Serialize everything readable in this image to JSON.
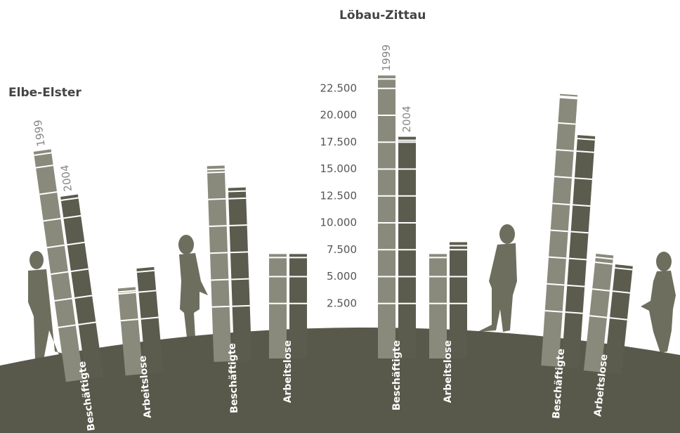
{
  "chart_data": {
    "type": "bar",
    "ylim": [
      0,
      25000
    ],
    "yticks": [
      {
        "value": 2500,
        "label": "2.500"
      },
      {
        "value": 5000,
        "label": "5.000"
      },
      {
        "value": 7500,
        "label": "7.500"
      },
      {
        "value": 10000,
        "label": "10.000"
      },
      {
        "value": 12500,
        "label": "12.500"
      },
      {
        "value": 15000,
        "label": "15.000"
      },
      {
        "value": 17500,
        "label": "17.500"
      },
      {
        "value": 20000,
        "label": "20.000"
      },
      {
        "value": 22500,
        "label": "22.500"
      }
    ],
    "groups": [
      {
        "name": "Elbe-Elster",
        "categories": [
          "Beschäftigte",
          "Arbeitslose"
        ],
        "series": [
          {
            "name": "1999",
            "color": "#8a8a7c",
            "values": [
              19000,
              5500
            ]
          },
          {
            "name": "2004",
            "color": "#5c5c4e",
            "values": [
              14500,
              7200
            ]
          }
        ]
      },
      {
        "categories": [
          "Beschäftigte",
          "Arbeitslose"
        ],
        "series": [
          {
            "color": "#8a8a7c",
            "values": [
              15600,
              7100
            ]
          },
          {
            "color": "#5c5c4e",
            "values": [
              13500,
              7100
            ]
          }
        ]
      },
      {
        "name": "Löbau-Zittau",
        "categories": [
          "Beschäftigte",
          "Arbeitslose"
        ],
        "series": [
          {
            "name": "1999",
            "color": "#8a8a7c",
            "values": [
              23700,
              7100
            ]
          },
          {
            "name": "2004",
            "color": "#5c5c4e",
            "values": [
              18000,
              8200
            ]
          }
        ]
      },
      {
        "categories": [
          "Beschäftigte",
          "Arbeitslose"
        ],
        "series": [
          {
            "color": "#8a8a7c",
            "values": [
              22700,
              8300
            ]
          },
          {
            "color": "#5c5c4e",
            "values": [
              19000,
              7500
            ]
          }
        ]
      }
    ]
  }
}
